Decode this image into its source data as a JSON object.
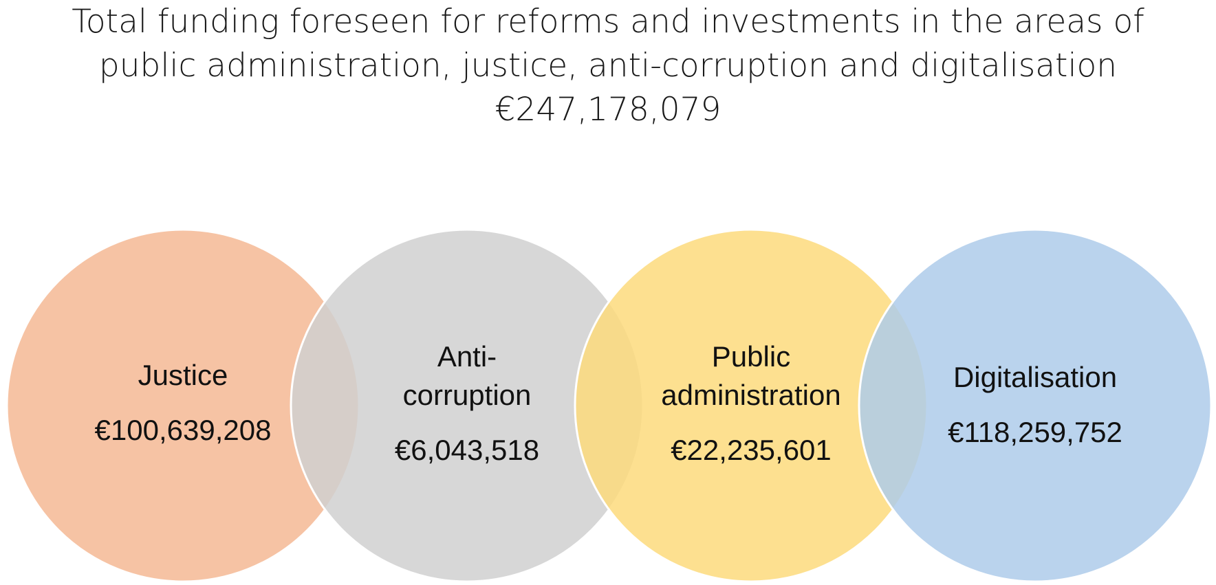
{
  "title": {
    "line1": "Total funding foreseen for reforms and investments in the areas of",
    "line2": "public administration, justice, anti-corruption and digitalisation",
    "total": "€247,178,079"
  },
  "areas": [
    {
      "name_line1": "Justice",
      "name_line2": "",
      "amount": "€100,639,208",
      "color": "#F4B994"
    },
    {
      "name_line1": "Anti-",
      "name_line2": "corruption",
      "amount": "€6,043,518",
      "color": "#D0D0D0"
    },
    {
      "name_line1": "Public",
      "name_line2": "administration",
      "amount": "€22,235,601",
      "color": "#FDDB7D"
    },
    {
      "name_line1": "Digitalisation",
      "name_line2": "",
      "amount": "€118,259,752",
      "color": "#AECBEA"
    }
  ]
}
